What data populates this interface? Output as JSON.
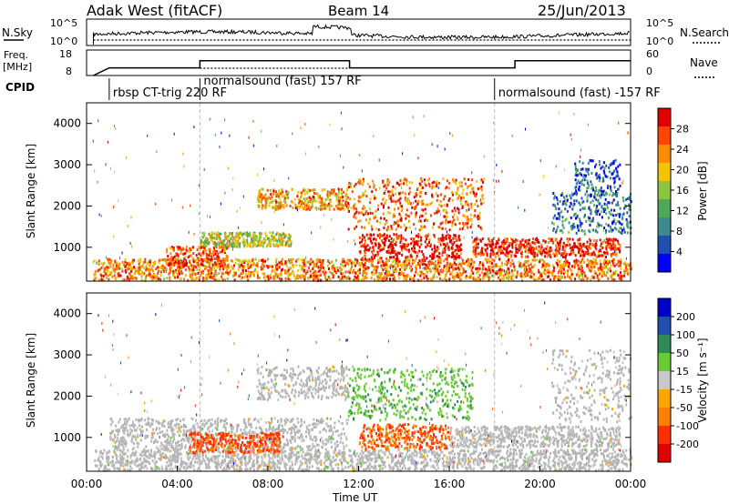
{
  "header": {
    "station": "Adak West (fitACF)",
    "beam": "Beam 14",
    "date": "25/Jun/2013"
  },
  "colors": {
    "power_scale": [
      "#0000ff",
      "#1f4fb0",
      "#3b8a90",
      "#4fa85a",
      "#8cc63f",
      "#f5c400",
      "#ff8c00",
      "#ff4500",
      "#e00000"
    ],
    "velocity_scale": [
      "#0000c8",
      "#1f4fb0",
      "#2e8b57",
      "#66cc33",
      "#c8c8c8",
      "#ffa500",
      "#ff8000",
      "#ff3000",
      "#e00000"
    ],
    "ground_scatter": "#b4b4b4"
  },
  "chart_data": [
    {
      "type": "line",
      "panel": "noise",
      "left_label": "N.Sky",
      "left_ticks": [
        "10^5",
        "10^0"
      ],
      "right_label": "N.Search",
      "right_ticks": [
        "10^5",
        "10^0"
      ]
    },
    {
      "type": "line",
      "panel": "frequency",
      "left_label_line1": "Freq.",
      "left_label_line2": "[MHz]",
      "left_ticks": [
        "18",
        "8"
      ],
      "right_label": "Nave",
      "right_ticks": [
        "60",
        "0"
      ],
      "freq_steps": [
        {
          "from": 1.0,
          "to": 5.0,
          "value": 11.0
        },
        {
          "from": 5.0,
          "to": 11.6,
          "value": 13.8
        },
        {
          "from": 11.6,
          "to": 18.9,
          "value": 11.0
        },
        {
          "from": 18.9,
          "to": 24.0,
          "value": 13.8
        }
      ],
      "freq_range": [
        8,
        18
      ],
      "time_range": [
        0,
        24
      ]
    },
    {
      "type": "table",
      "panel": "cpid",
      "label": "CPID",
      "segments": [
        {
          "start": 1.0,
          "text": "rbsp CT-trig 220 RF"
        },
        {
          "start": 5.0,
          "text": "normalsound (fast) 157 RF"
        },
        {
          "start": 18.0,
          "text": "normalsound (fast) -157 RF"
        }
      ]
    },
    {
      "type": "heatmap",
      "panel": "power",
      "ylabel": "Slant Range [km]",
      "yticks": [
        1000,
        2000,
        3000,
        4000
      ],
      "ylim": [
        180,
        4500
      ],
      "xlim": [
        0,
        24
      ],
      "colorbar_label": "Power [dB]",
      "colorbar_ticks": [
        "28",
        "24",
        "20",
        "16",
        "12",
        "8",
        "4"
      ],
      "bands": [
        {
          "t0": 0.3,
          "t1": 24.0,
          "r0": 180,
          "r1": 700,
          "level": 0.75
        },
        {
          "t0": 3.5,
          "t1": 6.2,
          "r0": 500,
          "r1": 1000,
          "level": 0.85
        },
        {
          "t0": 5.0,
          "t1": 9.0,
          "r0": 1000,
          "r1": 1350,
          "level": 0.55
        },
        {
          "t0": 7.5,
          "t1": 11.5,
          "r0": 1900,
          "r1": 2400,
          "level": 0.7
        },
        {
          "t0": 11.5,
          "t1": 17.5,
          "r0": 1400,
          "r1": 2650,
          "level": 0.8
        },
        {
          "t0": 12.0,
          "t1": 16.5,
          "r0": 700,
          "r1": 1300,
          "level": 0.95
        },
        {
          "t0": 17.0,
          "t1": 23.5,
          "r0": 750,
          "r1": 1200,
          "level": 0.9
        },
        {
          "t0": 20.5,
          "t1": 24.0,
          "r0": 1300,
          "r1": 2300,
          "level": 0.25
        },
        {
          "t0": 21.5,
          "t1": 23.5,
          "r0": 2200,
          "r1": 3100,
          "level": 0.2
        }
      ]
    },
    {
      "type": "heatmap",
      "panel": "velocity",
      "ylabel": "Slant Range [km]",
      "yticks": [
        1000,
        2000,
        3000,
        4000
      ],
      "ylim": [
        180,
        4500
      ],
      "xlim": [
        0,
        24
      ],
      "xlabel": "Time UT",
      "xticks": [
        "00:00",
        "04:00",
        "08:00",
        "12:00",
        "16:00",
        "20:00",
        "00:00"
      ],
      "colorbar_label": "Velocity [m s⁻¹]",
      "colorbar_ticks": [
        "200",
        "100",
        "50",
        "15",
        "-15",
        "-50",
        "-100",
        "-200"
      ],
      "bands": [
        {
          "t0": 0.3,
          "t1": 24.0,
          "r0": 180,
          "r1": 700,
          "v": 0
        },
        {
          "t0": 1.0,
          "t1": 11.5,
          "r0": 700,
          "r1": 1450,
          "v": 0
        },
        {
          "t0": 4.5,
          "t1": 8.5,
          "r0": 600,
          "r1": 1100,
          "v": -0.6
        },
        {
          "t0": 7.5,
          "t1": 11.5,
          "r0": 1900,
          "r1": 2700,
          "v": 0
        },
        {
          "t0": 11.5,
          "t1": 17.0,
          "r0": 1400,
          "r1": 2650,
          "v": 0.25
        },
        {
          "t0": 12.0,
          "t1": 16.0,
          "r0": 700,
          "r1": 1300,
          "v": -0.55
        },
        {
          "t0": 16.0,
          "t1": 23.5,
          "r0": 750,
          "r1": 1250,
          "v": 0
        },
        {
          "t0": 20.5,
          "t1": 24.0,
          "r0": 1300,
          "r1": 3100,
          "v": 0
        }
      ]
    }
  ]
}
